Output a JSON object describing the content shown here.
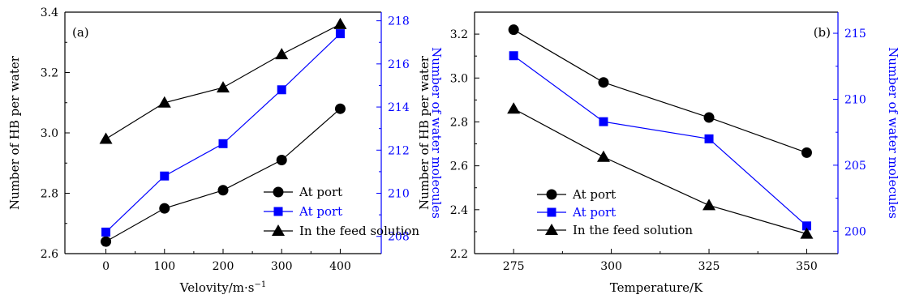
{
  "chart_data": [
    {
      "type": "line",
      "panel_label": "(a)",
      "xlabel": "Velovity/m·s⁻¹",
      "ylabel": "Number of HB per water",
      "y2label": "Number of water molecules",
      "x": [
        0,
        100,
        200,
        300,
        400
      ],
      "xlim": [
        -70,
        470
      ],
      "ylim": [
        2.6,
        3.4
      ],
      "y2lim": [
        207.2,
        218.4
      ],
      "xticks": [
        "0",
        "100",
        "200",
        "300",
        "400"
      ],
      "yticks": [
        "2.6",
        "2.8",
        "3.0",
        "3.2",
        "3.4"
      ],
      "y2ticks": [
        "208",
        "210",
        "212",
        "214",
        "216",
        "218"
      ],
      "grid": false,
      "legend_position": "lower-right",
      "series": [
        {
          "name": "At port",
          "axis": "left",
          "marker": "circle",
          "color": "#000000",
          "values": [
            2.64,
            2.75,
            2.81,
            2.91,
            3.08
          ]
        },
        {
          "name": "At port",
          "axis": "right",
          "marker": "square",
          "color": "#0000ff",
          "values": [
            208.2,
            210.8,
            212.3,
            214.8,
            217.4
          ]
        },
        {
          "name": "In the feed solution",
          "axis": "left",
          "marker": "triangle",
          "color": "#000000",
          "values": [
            2.98,
            3.1,
            3.15,
            3.26,
            3.36
          ]
        }
      ]
    },
    {
      "type": "line",
      "panel_label": "(b)",
      "xlabel": "Temperature/K",
      "ylabel": "Number of HB per water",
      "y2label": "Number of water molecules",
      "x": [
        275,
        298,
        325,
        350
      ],
      "xlim": [
        265,
        358
      ],
      "ylim": [
        2.2,
        3.3
      ],
      "y2lim": [
        198.3,
        216.6
      ],
      "xticks": [
        "275",
        "300",
        "325",
        "350"
      ],
      "xtick_values": [
        275,
        300,
        325,
        350
      ],
      "yticks": [
        "2.2",
        "2.4",
        "2.6",
        "2.8",
        "3.0",
        "3.2"
      ],
      "y2ticks": [
        "200",
        "205",
        "210",
        "215"
      ],
      "grid": false,
      "legend_position": "lower-left",
      "series": [
        {
          "name": "At port",
          "axis": "left",
          "marker": "circle",
          "color": "#000000",
          "values": [
            3.22,
            2.98,
            2.82,
            2.66
          ]
        },
        {
          "name": "At port",
          "axis": "right",
          "marker": "square",
          "color": "#0000ff",
          "values": [
            213.3,
            208.3,
            207.0,
            200.4
          ]
        },
        {
          "name": "In the feed solution",
          "axis": "left",
          "marker": "triangle",
          "color": "#000000",
          "values": [
            2.86,
            2.64,
            2.42,
            2.29
          ]
        }
      ]
    }
  ]
}
